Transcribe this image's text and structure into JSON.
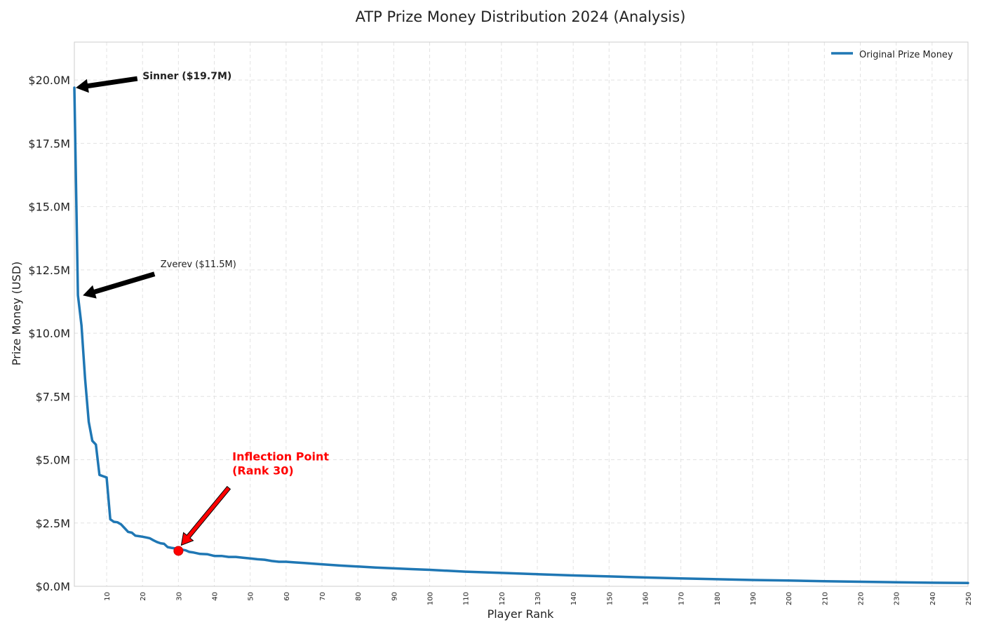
{
  "chart_data": {
    "type": "line",
    "title": "ATP Prize Money Distribution 2024 (Analysis)",
    "xlabel": "Player Rank",
    "ylabel": "Prize Money (USD)",
    "xlim": [
      1,
      250
    ],
    "ylim": [
      0,
      21.5
    ],
    "x_ticks": [
      10,
      20,
      30,
      40,
      50,
      60,
      70,
      80,
      90,
      100,
      110,
      120,
      130,
      140,
      150,
      160,
      170,
      180,
      190,
      200,
      210,
      220,
      230,
      240,
      250
    ],
    "y_ticks": [
      0,
      2.5,
      5,
      7.5,
      10,
      12.5,
      15,
      17.5,
      20
    ],
    "y_tick_labels": [
      "$0.0M",
      "$2.5M",
      "$5.0M",
      "$7.5M",
      "$10.0M",
      "$12.5M",
      "$15.0M",
      "$17.5M",
      "$20.0M"
    ],
    "grid": true,
    "legend_position": "top-right",
    "series": [
      {
        "name": "Original Prize Money",
        "color": "#1f77b4",
        "points": [
          [
            1,
            19.7
          ],
          [
            2,
            11.5
          ],
          [
            3,
            10.3
          ],
          [
            4,
            8.2
          ],
          [
            5,
            6.5
          ],
          [
            6,
            5.75
          ],
          [
            7,
            5.6
          ],
          [
            8,
            4.4
          ],
          [
            9,
            4.35
          ],
          [
            10,
            4.3
          ],
          [
            11,
            2.65
          ],
          [
            12,
            2.55
          ],
          [
            13,
            2.53
          ],
          [
            14,
            2.45
          ],
          [
            15,
            2.3
          ],
          [
            16,
            2.15
          ],
          [
            17,
            2.12
          ],
          [
            18,
            2.0
          ],
          [
            19,
            1.98
          ],
          [
            20,
            1.96
          ],
          [
            21,
            1.93
          ],
          [
            22,
            1.9
          ],
          [
            23,
            1.82
          ],
          [
            24,
            1.75
          ],
          [
            25,
            1.7
          ],
          [
            26,
            1.68
          ],
          [
            27,
            1.55
          ],
          [
            28,
            1.52
          ],
          [
            29,
            1.5
          ],
          [
            30,
            1.4
          ],
          [
            31,
            1.45
          ],
          [
            32,
            1.42
          ],
          [
            33,
            1.36
          ],
          [
            34,
            1.34
          ],
          [
            35,
            1.31
          ],
          [
            36,
            1.28
          ],
          [
            38,
            1.27
          ],
          [
            40,
            1.2
          ],
          [
            42,
            1.2
          ],
          [
            44,
            1.16
          ],
          [
            46,
            1.16
          ],
          [
            48,
            1.13
          ],
          [
            50,
            1.1
          ],
          [
            52,
            1.07
          ],
          [
            54,
            1.05
          ],
          [
            56,
            1.0
          ],
          [
            58,
            0.97
          ],
          [
            60,
            0.97
          ],
          [
            62,
            0.95
          ],
          [
            65,
            0.92
          ],
          [
            70,
            0.87
          ],
          [
            75,
            0.82
          ],
          [
            80,
            0.78
          ],
          [
            85,
            0.74
          ],
          [
            90,
            0.71
          ],
          [
            95,
            0.68
          ],
          [
            100,
            0.65
          ],
          [
            110,
            0.58
          ],
          [
            120,
            0.53
          ],
          [
            130,
            0.48
          ],
          [
            140,
            0.43
          ],
          [
            150,
            0.39
          ],
          [
            160,
            0.35
          ],
          [
            170,
            0.31
          ],
          [
            180,
            0.28
          ],
          [
            190,
            0.25
          ],
          [
            200,
            0.23
          ],
          [
            210,
            0.2
          ],
          [
            220,
            0.18
          ],
          [
            230,
            0.16
          ],
          [
            240,
            0.14
          ],
          [
            250,
            0.13
          ]
        ]
      }
    ],
    "annotations": [
      {
        "id": "sinner",
        "text": "Sinner ($19.7M)",
        "point": [
          1,
          19.7
        ],
        "text_pos": [
          20,
          20.0
        ],
        "color": "#222222",
        "bold": true
      },
      {
        "id": "zverev",
        "text": "Zverev ($11.5M)",
        "point": [
          2,
          11.5
        ],
        "text_pos": [
          25,
          12.5
        ],
        "color": "#222222",
        "bold": false
      },
      {
        "id": "inflection",
        "text": "Inflection Point",
        "text2": "(Rank 30)",
        "point": [
          30,
          1.4
        ],
        "text_pos": [
          45,
          5.0
        ],
        "color": "#ff0000",
        "bold": true
      }
    ],
    "marker": {
      "point": [
        30,
        1.4
      ],
      "color": "#ff0000"
    }
  }
}
